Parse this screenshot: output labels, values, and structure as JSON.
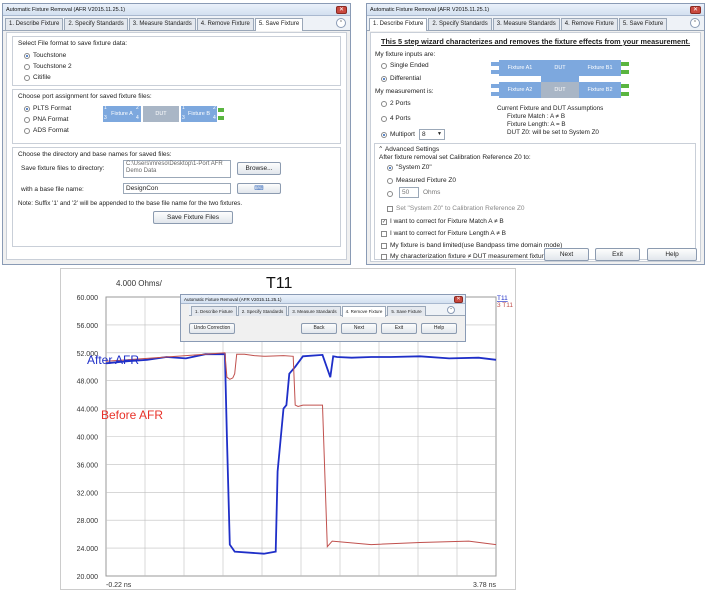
{
  "left_window": {
    "title": "Automatic Fixture Removal (AFR V2015.11.25.1)",
    "tabs": [
      "1. Describe Fixture",
      "2. Specify Standards",
      "3. Measure Standards",
      "4. Remove Fixture",
      "5. Save Fixture"
    ],
    "format_group": {
      "title": "Select File format to save fixture data:",
      "options": [
        "Touchstone",
        "Touchstone 2",
        "Citifile"
      ],
      "selected": "Touchstone"
    },
    "port_group": {
      "title": "Choose port assignment for saved fixture files:",
      "options": [
        "PLTS Format",
        "PNA Format",
        "ADS Format"
      ],
      "selected": "PLTS Format",
      "diagram": {
        "fixture_a": "Fixture A",
        "dut": "DUT",
        "fixture_b": "Fixture B",
        "port_nums": [
          "1",
          "3",
          "2",
          "4",
          "1",
          "3",
          "2",
          "4"
        ]
      }
    },
    "dir_group": {
      "title": "Choose the directory and base names for saved files:",
      "dir_label": "Save fixture files to directory:",
      "dir_value": "C:\\Users\\mreso\\Desktop\\1-Port AFR Demo Data",
      "browse": "Browse...",
      "base_label": "with a base file name:",
      "base_value": "DesignCon",
      "note": "Note: Suffix '1' and '2' will be appended to the base file name for the two fixtures.",
      "save_button": "Save Fixture Files"
    }
  },
  "right_window": {
    "title": "Automatic Fixture Removal (AFR V2015.11.25.1)",
    "tabs": [
      "1. Describe Fixture",
      "2. Specify Standards",
      "3. Measure Standards",
      "4. Remove Fixture",
      "5. Save Fixture"
    ],
    "headline": "This 5 step wizard characterizes and removes the fixture effects from your measurement.",
    "inputs_label": "My fixture inputs are:",
    "inputs_options": [
      "Single Ended",
      "Differential"
    ],
    "inputs_selected": "Differential",
    "measurement_label": "My measurement is:",
    "meas_options": [
      "2 Ports",
      "4 Ports",
      "Multiport"
    ],
    "meas_selected": "Multiport",
    "multiport_value": "8",
    "diagram": {
      "a1": "Fixture A1",
      "a2": "Fixture A2",
      "dut": "DUT",
      "b1": "Fixture B1",
      "b2": "Fixture B2"
    },
    "assumptions": [
      "Current Fixture and DUT Assumptions",
      "Fixture Match : A ≠ B",
      "Fixture Length: A = B",
      "DUT Z0: will be set to System Z0"
    ],
    "advanced": {
      "title": "Advanced Settings",
      "after_label": "After fixture removal set Calibration Reference Z0 to:",
      "z0_options": [
        "\"System Z0\"",
        "Measured Fixture Z0",
        "Ohms"
      ],
      "z0_selected": "\"System Z0\"",
      "ohms_value": "50",
      "set_label": "Set \"System Z0\" to Calibration Reference Z0",
      "checks": [
        {
          "label": "I want to correct for Fixture Match A ≠ B",
          "checked": true
        },
        {
          "label": "I want to correct for Fixture Length A ≠ B",
          "checked": false
        },
        {
          "label": "My fixture is band limited(use Bandpass time domain mode)",
          "checked": false
        },
        {
          "label": "My characterization fixture ≠ DUT measurement fixture",
          "checked": false
        }
      ]
    },
    "buttons": [
      "Next",
      "Exit",
      "Help"
    ]
  },
  "mini_window": {
    "title": "Automatic Fixture Removal (AFR V2015.11.25.1)",
    "tabs": [
      "1. Describe Fixture",
      "2. Specify Standards",
      "3. Measure Standards",
      "4. Remove Fixture",
      "5. Save Fixture"
    ],
    "undo": "Undo Correction",
    "buttons": [
      "Back",
      "Next",
      "Exit",
      "Help"
    ]
  },
  "chart_data": {
    "type": "line",
    "title": "T11",
    "scale_label": "4.000 Ohms/",
    "x_start": "-0.22 ns",
    "x_end": "3.78 ns",
    "xlim": [
      -0.22,
      3.78
    ],
    "ylim": [
      20,
      60
    ],
    "y_ticks": [
      "60.000",
      "56.000",
      "52.000",
      "48.000",
      "44.000",
      "40.000",
      "36.000",
      "32.000",
      "28.000",
      "24.000",
      "20.000"
    ],
    "legend": [
      "T11",
      "3 T11"
    ],
    "annotations": {
      "after": "After AFR",
      "before": "Before AFR"
    },
    "colors": {
      "after": "#1f2fc8",
      "before": "#c0504d",
      "grid": "#bfbfbf"
    },
    "series": [
      {
        "name": "After AFR",
        "color": "#1f2fc8",
        "x": [
          -0.22,
          0.0,
          0.2,
          0.4,
          0.6,
          0.8,
          1.0,
          1.02,
          1.05,
          1.1,
          1.4,
          1.52,
          1.54,
          1.6,
          1.63,
          1.66,
          1.72,
          1.8,
          2.0,
          2.08,
          2.11,
          2.15,
          2.3,
          2.5,
          2.7,
          3.0,
          3.3,
          3.6,
          3.78
        ],
        "y": [
          50.5,
          50.8,
          51.0,
          51.4,
          51.2,
          51.8,
          51.8,
          40.0,
          24.5,
          23.5,
          23.2,
          23.5,
          35.0,
          44.0,
          44.5,
          49.0,
          50.0,
          51.5,
          51.7,
          48.5,
          51.5,
          51.4,
          51.3,
          51.4,
          51.4,
          51.5,
          51.2,
          51.3,
          51.0
        ]
      },
      {
        "name": "Before AFR",
        "color": "#c0504d",
        "x": [
          -0.22,
          0.2,
          0.6,
          0.9,
          1.0,
          1.02,
          1.05,
          1.08,
          1.1,
          1.12,
          1.2,
          1.3,
          1.4,
          1.42,
          1.6,
          1.7,
          1.72,
          1.75,
          1.8,
          2.0,
          2.05,
          2.1,
          2.5,
          3.0,
          3.5,
          3.78
        ],
        "y": [
          50.8,
          51.2,
          51.6,
          51.9,
          52.0,
          48.5,
          48.2,
          48.4,
          49.0,
          51.8,
          51.8,
          51.6,
          51.5,
          51.5,
          51.6,
          51.5,
          44.5,
          44.3,
          44.5,
          44.5,
          24.2,
          25.0,
          24.5,
          24.8,
          25.0,
          24.5
        ]
      }
    ]
  }
}
